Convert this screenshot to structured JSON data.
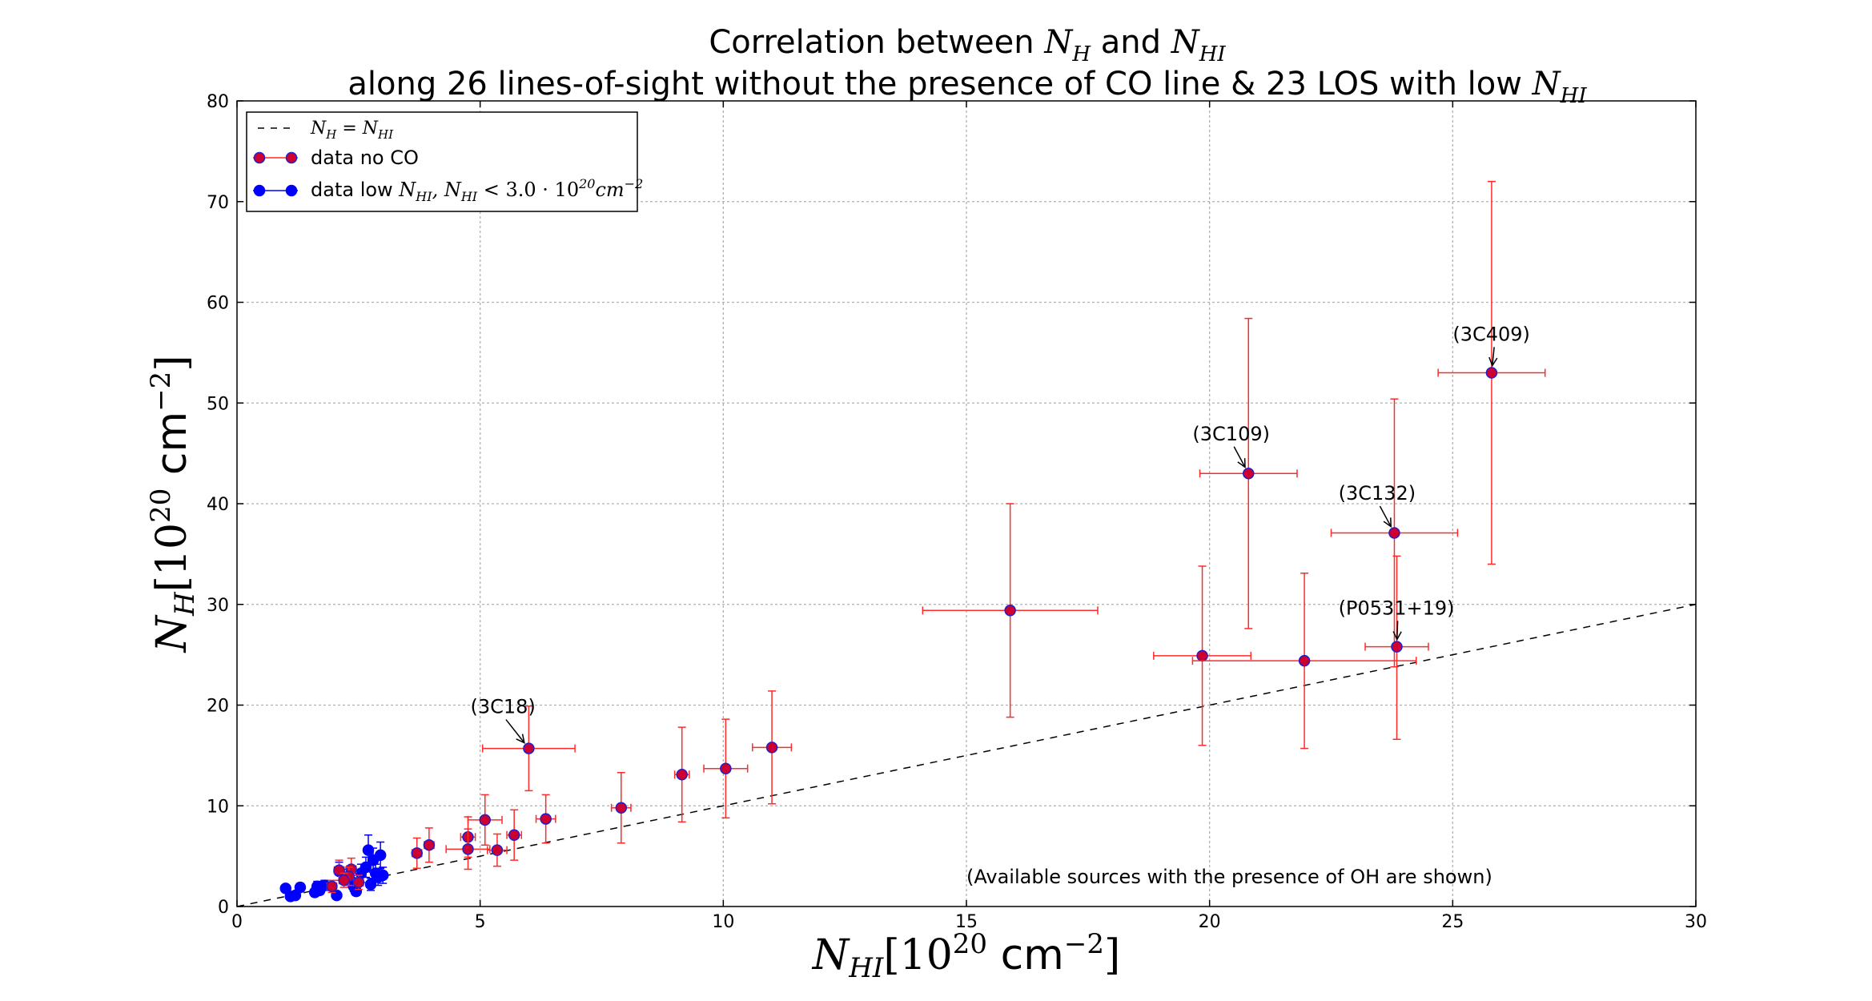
{
  "chart_data": {
    "type": "scatter",
    "title_line1": "Correlation between N_H and N_HI",
    "title_line2": "along 26 lines-of-sight without the presence of CO line & 23 LOS with low N_HI",
    "xlabel": "N_HI[10^20 cm^-2]",
    "ylabel": "N_H[10^20 cm^-2]",
    "xlim": [
      0,
      30
    ],
    "ylim": [
      0,
      80
    ],
    "xticks": [
      0,
      5,
      10,
      15,
      20,
      25,
      30
    ],
    "yticks": [
      0,
      10,
      20,
      30,
      40,
      50,
      60,
      70,
      80
    ],
    "grid": true,
    "legend_position": "upper-left",
    "legend": [
      {
        "key": "line",
        "label": "N_H = N_HI"
      },
      {
        "key": "noco",
        "label": "data no CO"
      },
      {
        "key": "low",
        "label": "data low N_HI, N_HI < 3.0·10^20 cm^-2"
      }
    ],
    "line": {
      "x": [
        0,
        30
      ],
      "y": [
        0,
        30
      ],
      "style": "dashed",
      "color": "#000000"
    },
    "series": [
      {
        "name": "data no CO",
        "key": "noco",
        "marker_color": "#cc0033",
        "edge_color": "#1f1fcc",
        "error_color": "#ff2a2a",
        "points": [
          {
            "x": 25.8,
            "y": 53.0,
            "xerr": 1.1,
            "yerr": [
              19.0,
              19.0
            ]
          },
          {
            "x": 20.8,
            "y": 43.0,
            "xerr": 1.0,
            "yerr": [
              15.4,
              15.4
            ]
          },
          {
            "x": 23.8,
            "y": 37.1,
            "xerr": 1.3,
            "yerr": [
              13.3,
              13.3
            ]
          },
          {
            "x": 15.9,
            "y": 29.4,
            "xerr": 1.8,
            "yerr": [
              10.6,
              10.6
            ]
          },
          {
            "x": 23.85,
            "y": 25.8,
            "xerr": 0.65,
            "yerr": [
              9.2,
              9.0
            ]
          },
          {
            "x": 19.85,
            "y": 24.9,
            "xerr": 1.0,
            "yerr": [
              8.9,
              8.9
            ]
          },
          {
            "x": 21.95,
            "y": 24.4,
            "xerr": 2.3,
            "yerr": [
              8.7,
              8.7
            ]
          },
          {
            "x": 6.0,
            "y": 15.7,
            "xerr": 0.95,
            "yerr": [
              4.2,
              4.2
            ]
          },
          {
            "x": 11.0,
            "y": 15.8,
            "xerr": 0.4,
            "yerr": [
              5.6,
              5.6
            ]
          },
          {
            "x": 10.05,
            "y": 13.7,
            "xerr": 0.45,
            "yerr": [
              4.9,
              4.9
            ]
          },
          {
            "x": 9.15,
            "y": 13.1,
            "xerr": 0.15,
            "yerr": [
              4.7,
              4.7
            ]
          },
          {
            "x": 7.9,
            "y": 9.8,
            "xerr": 0.2,
            "yerr": [
              3.5,
              3.5
            ]
          },
          {
            "x": 6.35,
            "y": 8.7,
            "xerr": 0.2,
            "yerr": [
              2.4,
              2.4
            ]
          },
          {
            "x": 5.1,
            "y": 8.6,
            "xerr": 0.35,
            "yerr": [
              2.5,
              2.5
            ]
          },
          {
            "x": 5.7,
            "y": 7.1,
            "xerr": 0.15,
            "yerr": [
              2.5,
              2.5
            ]
          },
          {
            "x": 4.75,
            "y": 6.9,
            "xerr": 0.15,
            "yerr": [
              2.0,
              2.0
            ]
          },
          {
            "x": 3.95,
            "y": 6.1,
            "xerr": 0.1,
            "yerr": [
              1.7,
              1.7
            ]
          },
          {
            "x": 4.75,
            "y": 5.7,
            "xerr": 0.45,
            "yerr": [
              2.0,
              2.0
            ]
          },
          {
            "x": 5.35,
            "y": 5.6,
            "xerr": 0.2,
            "yerr": [
              1.6,
              1.6
            ]
          },
          {
            "x": 3.7,
            "y": 5.3,
            "xerr": 0.1,
            "yerr": [
              1.5,
              1.5
            ]
          },
          {
            "x": 2.35,
            "y": 3.7,
            "xerr": 0.1,
            "yerr": [
              1.1,
              1.1
            ]
          },
          {
            "x": 2.1,
            "y": 3.6,
            "xerr": 0.1,
            "yerr": [
              1.0,
              1.0
            ]
          },
          {
            "x": 2.3,
            "y": 3.0,
            "xerr": 0.1,
            "yerr": [
              0.9,
              0.9
            ]
          },
          {
            "x": 1.95,
            "y": 2.0,
            "xerr": 0.1,
            "yerr": [
              0.6,
              0.6
            ]
          },
          {
            "x": 2.2,
            "y": 2.6,
            "xerr": 0.1,
            "yerr": [
              0.7,
              0.7
            ]
          },
          {
            "x": 2.5,
            "y": 2.4,
            "xerr": 0.1,
            "yerr": [
              0.7,
              0.7
            ]
          }
        ]
      },
      {
        "name": "data low N_HI, N_HI < 3.0·10^20 cm^-2",
        "key": "low",
        "marker_color": "#0000ff",
        "edge_color": "#0000ff",
        "error_color": "#0000ff",
        "points": [
          {
            "x": 1.0,
            "y": 1.8,
            "xerr": 0.05,
            "yerr": [
              0.3,
              0.3
            ]
          },
          {
            "x": 1.1,
            "y": 1.0,
            "xerr": 0.05,
            "yerr": [
              0.3,
              0.3
            ]
          },
          {
            "x": 1.2,
            "y": 1.1,
            "xerr": 0.05,
            "yerr": [
              0.3,
              0.3
            ]
          },
          {
            "x": 1.3,
            "y": 1.9,
            "xerr": 0.05,
            "yerr": [
              0.4,
              0.4
            ]
          },
          {
            "x": 1.6,
            "y": 1.4,
            "xerr": 0.05,
            "yerr": [
              0.4,
              0.4
            ]
          },
          {
            "x": 1.65,
            "y": 2.0,
            "xerr": 0.05,
            "yerr": [
              0.5,
              0.5
            ]
          },
          {
            "x": 1.7,
            "y": 1.6,
            "xerr": 0.05,
            "yerr": [
              0.4,
              0.4
            ]
          },
          {
            "x": 1.8,
            "y": 2.1,
            "xerr": 0.05,
            "yerr": [
              0.5,
              0.5
            ]
          },
          {
            "x": 2.05,
            "y": 1.1,
            "xerr": 0.05,
            "yerr": [
              0.3,
              0.3
            ]
          },
          {
            "x": 2.1,
            "y": 3.5,
            "xerr": 0.05,
            "yerr": [
              0.9,
              0.9
            ]
          },
          {
            "x": 2.25,
            "y": 2.9,
            "xerr": 0.05,
            "yerr": [
              0.8,
              0.8
            ]
          },
          {
            "x": 2.35,
            "y": 2.5,
            "xerr": 0.05,
            "yerr": [
              0.6,
              0.6
            ]
          },
          {
            "x": 2.4,
            "y": 2.0,
            "xerr": 0.05,
            "yerr": [
              0.5,
              0.5
            ]
          },
          {
            "x": 2.45,
            "y": 1.5,
            "xerr": 0.05,
            "yerr": [
              0.4,
              0.4
            ]
          },
          {
            "x": 2.55,
            "y": 3.3,
            "xerr": 0.05,
            "yerr": [
              0.9,
              0.9
            ]
          },
          {
            "x": 2.65,
            "y": 3.9,
            "xerr": 0.05,
            "yerr": [
              1.0,
              1.0
            ]
          },
          {
            "x": 2.7,
            "y": 5.6,
            "xerr": 0.05,
            "yerr": [
              1.5,
              1.5
            ]
          },
          {
            "x": 2.75,
            "y": 2.2,
            "xerr": 0.05,
            "yerr": [
              0.6,
              0.6
            ]
          },
          {
            "x": 2.8,
            "y": 4.6,
            "xerr": 0.05,
            "yerr": [
              1.2,
              1.2
            ]
          },
          {
            "x": 2.85,
            "y": 3.3,
            "xerr": 0.05,
            "yerr": [
              0.9,
              0.9
            ]
          },
          {
            "x": 2.9,
            "y": 2.9,
            "xerr": 0.05,
            "yerr": [
              0.8,
              0.8
            ]
          },
          {
            "x": 2.95,
            "y": 5.1,
            "xerr": 0.05,
            "yerr": [
              1.3,
              1.3
            ]
          },
          {
            "x": 3.0,
            "y": 3.1,
            "xerr": 0.05,
            "yerr": [
              0.8,
              0.8
            ]
          }
        ]
      }
    ],
    "annotations": [
      {
        "text": "(3C409)",
        "x": 25.8,
        "y": 53.0,
        "tx": 25.0,
        "ty": 56.2
      },
      {
        "text": "(3C109)",
        "x": 20.8,
        "y": 43.0,
        "tx": 19.65,
        "ty": 46.3
      },
      {
        "text": "(3C132)",
        "x": 23.8,
        "y": 37.1,
        "tx": 22.65,
        "ty": 40.4
      },
      {
        "text": "(P0531+19)",
        "x": 23.85,
        "y": 25.8,
        "tx": 22.65,
        "ty": 29.0
      },
      {
        "text": "(3C18)",
        "x": 6.0,
        "y": 15.7,
        "tx": 4.8,
        "ty": 19.2
      }
    ],
    "note": "(Available sources with the presence of OH are shown)",
    "note_position": {
      "x": 15.0,
      "y": 2.3
    }
  }
}
